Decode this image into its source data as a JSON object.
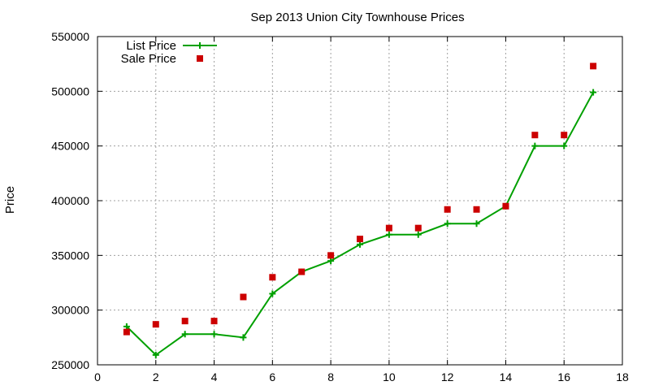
{
  "chart_data": {
    "type": "line",
    "title": "Sep 2013 Union City Townhouse Prices",
    "xlabel": "",
    "ylabel": "Price",
    "xlim": [
      0,
      18
    ],
    "ylim": [
      250000,
      550000
    ],
    "x_ticks": [
      0,
      2,
      4,
      6,
      8,
      10,
      12,
      14,
      16,
      18
    ],
    "y_ticks": [
      250000,
      300000,
      350000,
      400000,
      450000,
      500000,
      550000
    ],
    "grid": true,
    "legend_position": "top-left",
    "series": [
      {
        "name": "List Price",
        "type": "line-points",
        "color": "#00a000",
        "marker": "plus",
        "x": [
          1,
          2,
          3,
          4,
          5,
          6,
          7,
          8,
          9,
          10,
          11,
          12,
          13,
          14,
          15,
          16,
          17
        ],
        "y": [
          285000,
          259000,
          278000,
          278000,
          275000,
          315000,
          335000,
          345000,
          360000,
          369000,
          369000,
          379000,
          379000,
          395000,
          450000,
          450000,
          499000
        ]
      },
      {
        "name": "Sale Price",
        "type": "points",
        "color": "#cc0000",
        "marker": "square",
        "x": [
          1,
          2,
          3,
          4,
          5,
          6,
          7,
          8,
          9,
          10,
          11,
          12,
          13,
          14,
          15,
          16,
          17
        ],
        "y": [
          280000,
          287000,
          290000,
          290000,
          312000,
          330000,
          335000,
          350000,
          365000,
          375000,
          375000,
          392000,
          392000,
          395000,
          460000,
          460000,
          523000
        ]
      }
    ]
  }
}
